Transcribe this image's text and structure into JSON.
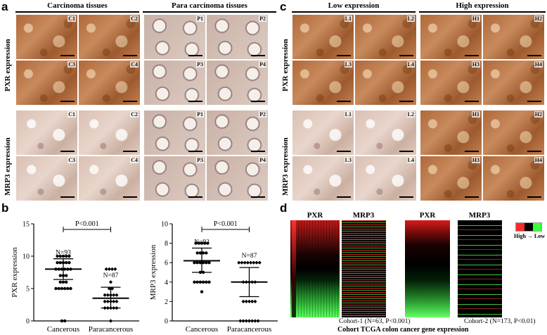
{
  "panels": {
    "a": {
      "letter": "a",
      "headers": [
        "Carcinoma tissues",
        "Para carcinoma tissues"
      ],
      "row_labels": [
        "PXR  expression",
        "MRP3  expression"
      ],
      "tile_labels": [
        [
          "C1",
          "C2",
          "P1",
          "P2"
        ],
        [
          "C3",
          "C4",
          "P3",
          "P4"
        ],
        [
          "C1",
          "C2",
          "P1",
          "P2"
        ],
        [
          "C3",
          "C4",
          "P3",
          "P4"
        ]
      ]
    },
    "c": {
      "letter": "c",
      "headers": [
        "Low expression",
        "High expression"
      ],
      "row_labels": [
        "PXR  expression",
        "MRP3  expression"
      ],
      "tile_labels": [
        [
          "L1",
          "L2",
          "H1",
          "H2"
        ],
        [
          "L3",
          "L4",
          "H3",
          "H4"
        ],
        [
          "L1",
          "L2",
          "H1",
          "H2"
        ],
        [
          "L3",
          "L4",
          "H3",
          "H4"
        ]
      ]
    },
    "b": {
      "letter": "b",
      "pvalue": "P<0.001"
    },
    "d": {
      "letter": "d",
      "col_labels": [
        "PXR",
        "MRP3",
        "PXR",
        "MRP3"
      ],
      "cohort1": "Cohort-1 (N=63, P<0.001)",
      "cohort2": "Cohort-2  (N=173, P<0.01)",
      "caption": "Cohort  TCGA colon cancer gene expression",
      "legend_text": "High → Low",
      "legend_colors": [
        "#ff2a2a",
        "#000000",
        "#3cff3c"
      ]
    }
  },
  "chart_data": [
    {
      "type": "scatter",
      "ylabel": "PXR expression",
      "categories": [
        "Cancerous",
        "Paracancerous"
      ],
      "ylim": [
        0,
        15
      ],
      "yticks": [
        0,
        5,
        10,
        15
      ],
      "annotations": [
        "N=93",
        "N=87"
      ],
      "pvalue": "P<0.001",
      "series": [
        {
          "name": "Cancerous",
          "mean": 8.0,
          "sd_upper": 9.6,
          "sd_lower": 6.4,
          "points": [
            0,
            0,
            5,
            5,
            5,
            5,
            5,
            5,
            6,
            6,
            6,
            7,
            7,
            7,
            8,
            8,
            8,
            8,
            8,
            8,
            9,
            9,
            9,
            9,
            9,
            10,
            10,
            10,
            10,
            10
          ]
        },
        {
          "name": "Paracancerous",
          "mean": 3.5,
          "sd_upper": 5.2,
          "sd_lower": 2.0,
          "points": [
            0,
            2,
            2,
            2,
            2,
            2,
            3,
            3,
            3,
            3,
            3,
            4,
            4,
            4,
            4,
            4,
            5,
            5,
            6,
            8,
            8,
            8,
            8
          ]
        }
      ]
    },
    {
      "type": "scatter",
      "ylabel": "MRP3 expression",
      "categories": [
        "Cancerous",
        "Paracancerous"
      ],
      "ylim": [
        0,
        10
      ],
      "yticks": [
        0,
        2,
        4,
        6,
        8,
        10
      ],
      "annotations": [
        "N=92",
        "N=87"
      ],
      "pvalue": "P<0.001",
      "series": [
        {
          "name": "Cancerous",
          "mean": 6.2,
          "sd_upper": 7.5,
          "sd_lower": 5.0,
          "points": [
            3,
            4,
            4,
            4,
            4,
            4,
            4,
            5,
            5,
            6,
            6,
            6,
            6,
            6,
            6,
            7,
            7,
            7,
            7,
            8,
            8,
            8,
            8,
            8
          ]
        },
        {
          "name": "Paracancerous",
          "mean": 4.0,
          "sd_upper": 5.5,
          "sd_lower": 2.5,
          "points": [
            0,
            0,
            0,
            0,
            0,
            0,
            0,
            2,
            2,
            2,
            2,
            2,
            4,
            4,
            4,
            4,
            4,
            6,
            6,
            6,
            6,
            6,
            6,
            6,
            6
          ]
        }
      ]
    }
  ]
}
